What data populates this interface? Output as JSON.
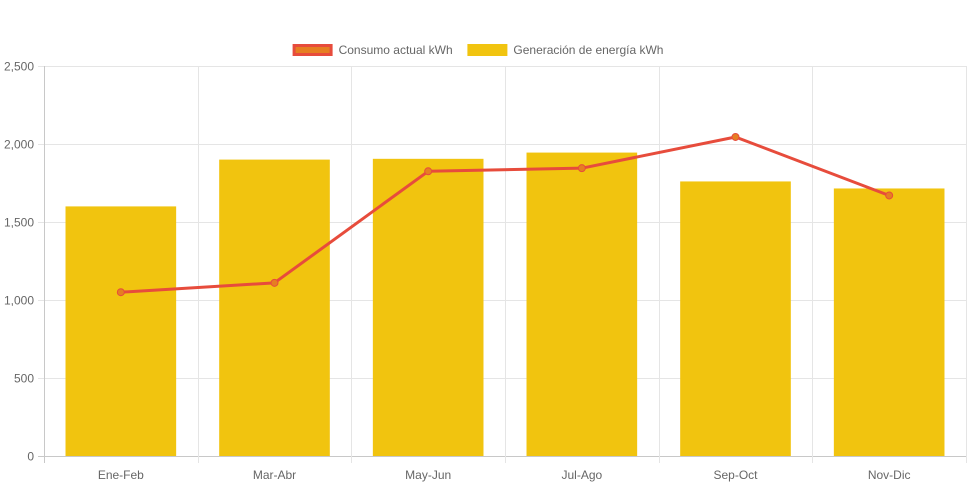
{
  "chart_data": {
    "type": "bar",
    "categories": [
      "Ene-Feb",
      "Mar-Abr",
      "May-Jun",
      "Jul-Ago",
      "Sep-Oct",
      "Nov-Dic"
    ],
    "series": [
      {
        "name": "Consumo actual kWh",
        "type": "line",
        "values": [
          1050,
          1110,
          1825,
          1845,
          2045,
          1670
        ],
        "color": "#e74c3c",
        "fill_color": "#e67e22"
      },
      {
        "name": "Generación de energía kWh",
        "type": "bar",
        "values": [
          1600,
          1900,
          1905,
          1945,
          1760,
          1715
        ],
        "color": "#f1c40f"
      }
    ],
    "ylim": [
      0,
      2500
    ],
    "yticks": [
      0,
      500,
      1000,
      1500,
      2000,
      2500
    ],
    "ytick_labels": [
      "0",
      "500",
      "1,000",
      "1,500",
      "2,000",
      "2,500"
    ],
    "grid": true,
    "legend_position": "top-center",
    "title": "",
    "xlabel": "",
    "ylabel": ""
  }
}
